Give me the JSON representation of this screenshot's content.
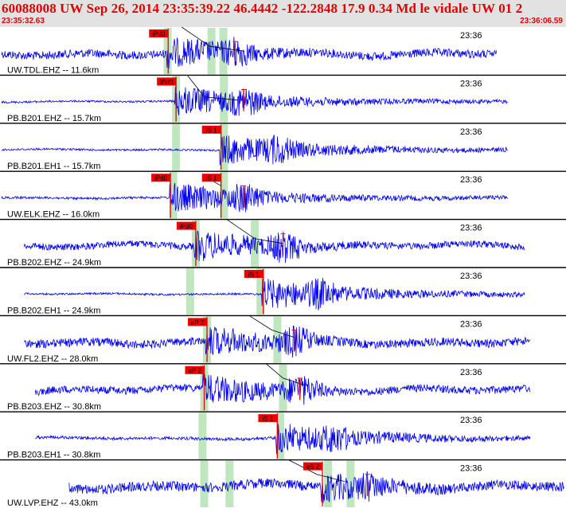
{
  "header": {
    "title": "60088008 UW Sep 26, 2014 23:35:39.22   46.4442 -122.2848 17.9 0.34 Md le vidale UW 01   2",
    "time_start": "23:35:32.63",
    "time_end": "23:36:06.59"
  },
  "colors": {
    "header_bg": "#e2e2e2",
    "header_text": "#e00000",
    "trace": "#0000ee",
    "pick_bg": "#ee0000",
    "window": "#bfe6bf",
    "curve": "#000000"
  },
  "chart_data": {
    "type": "seismogram",
    "time_range": [
      "23:35:32.63",
      "23:36:06.59"
    ],
    "time_tick_label": "23:36",
    "theoretical_curves": true,
    "traces": [
      {
        "label": "UW.TDL.EHZ -- 11.6km",
        "start": 0.0,
        "end": 0.88,
        "amp": 0.22,
        "picks": [
          {
            "text": "iPd0",
            "t": 0.296
          }
        ],
        "windows": [
          0.295,
          0.373,
          0.394
        ],
        "s_marker": 0.415,
        "curve_points": [
          [
            0.32,
            0.0
          ],
          [
            0.37,
            0.4
          ],
          [
            0.43,
            0.5
          ]
        ]
      },
      {
        "label": "PB.B201.EHZ -- 15.7km",
        "start": 0.0,
        "end": 0.9,
        "amp": 0.05,
        "picks": [
          {
            "text": "iPd0",
            "t": 0.31
          }
        ],
        "windows": [
          0.31,
          0.395
        ],
        "s_marker": 0.43,
        "curve_points": [
          [
            0.33,
            0.0
          ],
          [
            0.36,
            0.45
          ],
          [
            0.42,
            0.52
          ]
        ]
      },
      {
        "label": "PB.B201.EH1 -- 15.7km",
        "start": 0.0,
        "end": 0.9,
        "amp": 0.05,
        "picks": [
          {
            "text": "iS 1",
            "t": 0.39
          }
        ],
        "windows": [
          0.31,
          0.395
        ],
        "s_marker": null,
        "curve_points": []
      },
      {
        "label": "UW.ELK.EHZ -- 16.0km",
        "start": 0.0,
        "end": 0.9,
        "amp": 0.06,
        "picks": [
          {
            "text": "iPd0",
            "t": 0.3
          },
          {
            "text": "iS 1",
            "t": 0.39
          }
        ],
        "windows": [
          0.305,
          0.395
        ],
        "s_marker": 0.43,
        "curve_points": [
          [
            0.36,
            0.1
          ],
          [
            0.39,
            0.3
          ]
        ]
      },
      {
        "label": "PB.B202.EHZ -- 24.9km",
        "start": 0.04,
        "end": 0.93,
        "amp": 0.18,
        "picks": [
          {
            "text": "iPd0",
            "t": 0.345
          }
        ],
        "windows": [
          0.345,
          0.45
        ],
        "s_marker": 0.5,
        "curve_points": [
          [
            0.4,
            0.0
          ],
          [
            0.45,
            0.4
          ],
          [
            0.5,
            0.5
          ]
        ]
      },
      {
        "label": "PB.B202.EH1 -- 24.9km",
        "start": 0.04,
        "end": 0.93,
        "amp": 0.05,
        "picks": [
          {
            "text": "iS 1",
            "t": 0.465
          }
        ],
        "windows": [
          0.335,
          0.46
        ],
        "s_marker": null,
        "curve_points": []
      },
      {
        "label": "UW.FL2.EHZ -- 28.0km",
        "start": 0.04,
        "end": 0.94,
        "amp": 0.22,
        "picks": [
          {
            "text": "eP 2",
            "t": 0.365
          }
        ],
        "windows": [
          0.365,
          0.49
        ],
        "s_marker": 0.52,
        "curve_points": [
          [
            0.44,
            0.0
          ],
          [
            0.48,
            0.3
          ],
          [
            0.52,
            0.45
          ]
        ]
      },
      {
        "label": "PB.B203.EHZ -- 30.8km",
        "start": 0.06,
        "end": 0.94,
        "amp": 0.2,
        "picks": [
          {
            "text": "eP 2",
            "t": 0.36
          }
        ],
        "windows": [
          0.36,
          0.5
        ],
        "s_marker": 0.53,
        "curve_points": [
          [
            0.47,
            0.0
          ],
          [
            0.5,
            0.3
          ],
          [
            0.54,
            0.45
          ]
        ]
      },
      {
        "label": "PB.B203.EH1 -- 30.8km",
        "start": 0.06,
        "end": 0.94,
        "amp": 0.08,
        "picks": [
          {
            "text": "iS 1",
            "t": 0.49
          }
        ],
        "windows": [
          0.357,
          0.495
        ],
        "s_marker": null,
        "curve_points": []
      },
      {
        "label": "UW.LVP.EHZ -- 43.0km",
        "start": 0.12,
        "end": 1.0,
        "amp": 0.25,
        "picks": [
          {
            "text": "eS 2",
            "t": 0.57
          }
        ],
        "windows": [
          0.36,
          0.405,
          0.58,
          0.62
        ],
        "s_marker": 0.65,
        "curve_points": [
          [
            0.51,
            0.0
          ],
          [
            0.56,
            0.3
          ],
          [
            0.61,
            0.45
          ]
        ]
      }
    ]
  }
}
